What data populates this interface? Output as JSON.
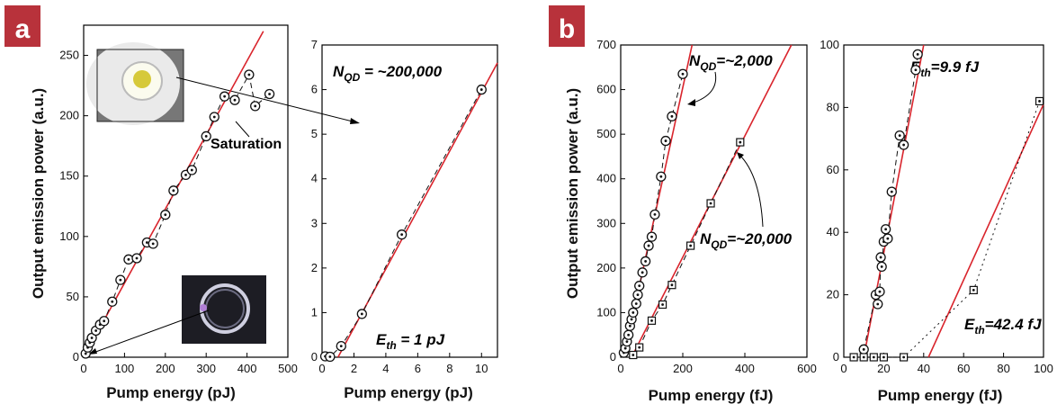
{
  "figure": {
    "panel_labels": [
      "a",
      "b"
    ],
    "badge_color": "#b8323b"
  },
  "colors": {
    "fit_line": "#d9242c",
    "data": "#111111"
  },
  "chart_data": [
    {
      "id": "a-left",
      "type": "scatter",
      "xlabel": "Pump energy (pJ)",
      "ylabel": "Output emission power (a.u.)",
      "xlim": [
        0,
        500
      ],
      "ylim": [
        0,
        275
      ],
      "xticks": [
        0,
        100,
        200,
        300,
        400,
        500
      ],
      "yticks": [
        0,
        50,
        100,
        150,
        200,
        250
      ],
      "series": [
        {
          "marker": "circle-dot",
          "x": [
            5,
            10,
            15,
            20,
            30,
            40,
            50,
            70,
            90,
            110,
            130,
            155,
            170,
            200,
            220,
            250,
            265,
            300,
            320,
            345,
            370,
            405,
            420,
            455
          ],
          "y": [
            3,
            8,
            12,
            16,
            22,
            27,
            30,
            46,
            64,
            81,
            82,
            95,
            94,
            118,
            138,
            151,
            155,
            183,
            199,
            216,
            213,
            234,
            208,
            218
          ]
        }
      ],
      "fit_lines": [
        {
          "x": [
            0,
            440
          ],
          "y": [
            0,
            270
          ]
        }
      ],
      "annotations": [
        "Saturation"
      ],
      "insets": [
        "microdisk-bright",
        "microdisk-ring"
      ]
    },
    {
      "id": "a-right",
      "type": "scatter",
      "xlabel": "Pump energy (pJ)",
      "ylabel": "",
      "xlim": [
        0,
        11
      ],
      "ylim": [
        0,
        7
      ],
      "xticks": [
        0,
        2,
        4,
        6,
        8,
        10
      ],
      "yticks": [
        0,
        1,
        2,
        3,
        4,
        5,
        6,
        7
      ],
      "series": [
        {
          "marker": "circle-dot",
          "x": [
            0.2,
            0.5,
            1.2,
            2.5,
            5,
            10
          ],
          "y": [
            0.02,
            0.01,
            0.25,
            0.97,
            2.75,
            6.0
          ]
        }
      ],
      "fit_lines": [
        {
          "x": [
            1.0,
            11
          ],
          "y": [
            0,
            6.6
          ]
        }
      ],
      "annotations": [
        {
          "main": "N",
          "sub": "QD",
          "rest": " = ~200,000"
        },
        {
          "main": "E",
          "sub": "th",
          "rest": " = 1 pJ"
        }
      ]
    },
    {
      "id": "b-left",
      "type": "scatter",
      "xlabel": "Pump energy (fJ)",
      "ylabel": "Output emission power (a.u.)",
      "xlim": [
        0,
        600
      ],
      "ylim": [
        0,
        700
      ],
      "xticks": [
        0,
        200,
        400,
        600
      ],
      "yticks": [
        0,
        100,
        200,
        300,
        400,
        500,
        600,
        700
      ],
      "series": [
        {
          "marker": "circle-dot",
          "x": [
            10,
            15,
            20,
            25,
            30,
            35,
            40,
            50,
            55,
            60,
            70,
            80,
            90,
            100,
            110,
            130,
            145,
            165,
            200
          ],
          "y": [
            10,
            20,
            35,
            50,
            70,
            85,
            100,
            120,
            140,
            160,
            190,
            215,
            250,
            270,
            320,
            405,
            485,
            540,
            635
          ]
        },
        {
          "marker": "square-dot",
          "x": [
            40,
            60,
            100,
            135,
            165,
            225,
            290,
            385
          ],
          "y": [
            5,
            22,
            82,
            118,
            162,
            250,
            345,
            482
          ]
        }
      ],
      "fit_lines": [
        {
          "x": [
            10,
            230
          ],
          "y": [
            0,
            700
          ]
        },
        {
          "x": [
            35,
            550
          ],
          "y": [
            0,
            700
          ]
        }
      ],
      "annotations": [
        {
          "main": "N",
          "sub": "QD",
          "rest": "=~2,000"
        },
        {
          "main": "N",
          "sub": "QD",
          "rest": "=~20,000"
        }
      ]
    },
    {
      "id": "b-right",
      "type": "scatter",
      "xlabel": "Pump energy (fJ)",
      "ylabel": "",
      "xlim": [
        0,
        100
      ],
      "ylim": [
        0,
        100
      ],
      "xticks": [
        0,
        20,
        40,
        60,
        80,
        100
      ],
      "yticks": [
        0,
        20,
        40,
        60,
        80,
        100
      ],
      "series": [
        {
          "marker": "circle-dot",
          "x": [
            10,
            16,
            17,
            18,
            18.5,
            19,
            20,
            21,
            22,
            24,
            28,
            30,
            36,
            37
          ],
          "y": [
            2.5,
            20,
            17,
            21,
            32,
            29,
            37,
            41,
            38,
            53,
            71,
            68,
            92,
            97
          ]
        },
        {
          "marker": "square-dot",
          "x": [
            5,
            10,
            15,
            20,
            30,
            65,
            98
          ],
          "y": [
            0,
            0,
            0,
            0,
            0,
            21.5,
            82
          ]
        }
      ],
      "fit_lines": [
        {
          "x": [
            10,
            40
          ],
          "y": [
            0,
            100
          ]
        },
        {
          "x": [
            42.4,
            100
          ],
          "y": [
            0,
            81
          ]
        }
      ],
      "annotations": [
        {
          "main": "E",
          "sub": "th",
          "rest": "=9.9 fJ"
        },
        {
          "main": "E",
          "sub": "th",
          "rest": "=42.4 fJ"
        }
      ]
    }
  ]
}
